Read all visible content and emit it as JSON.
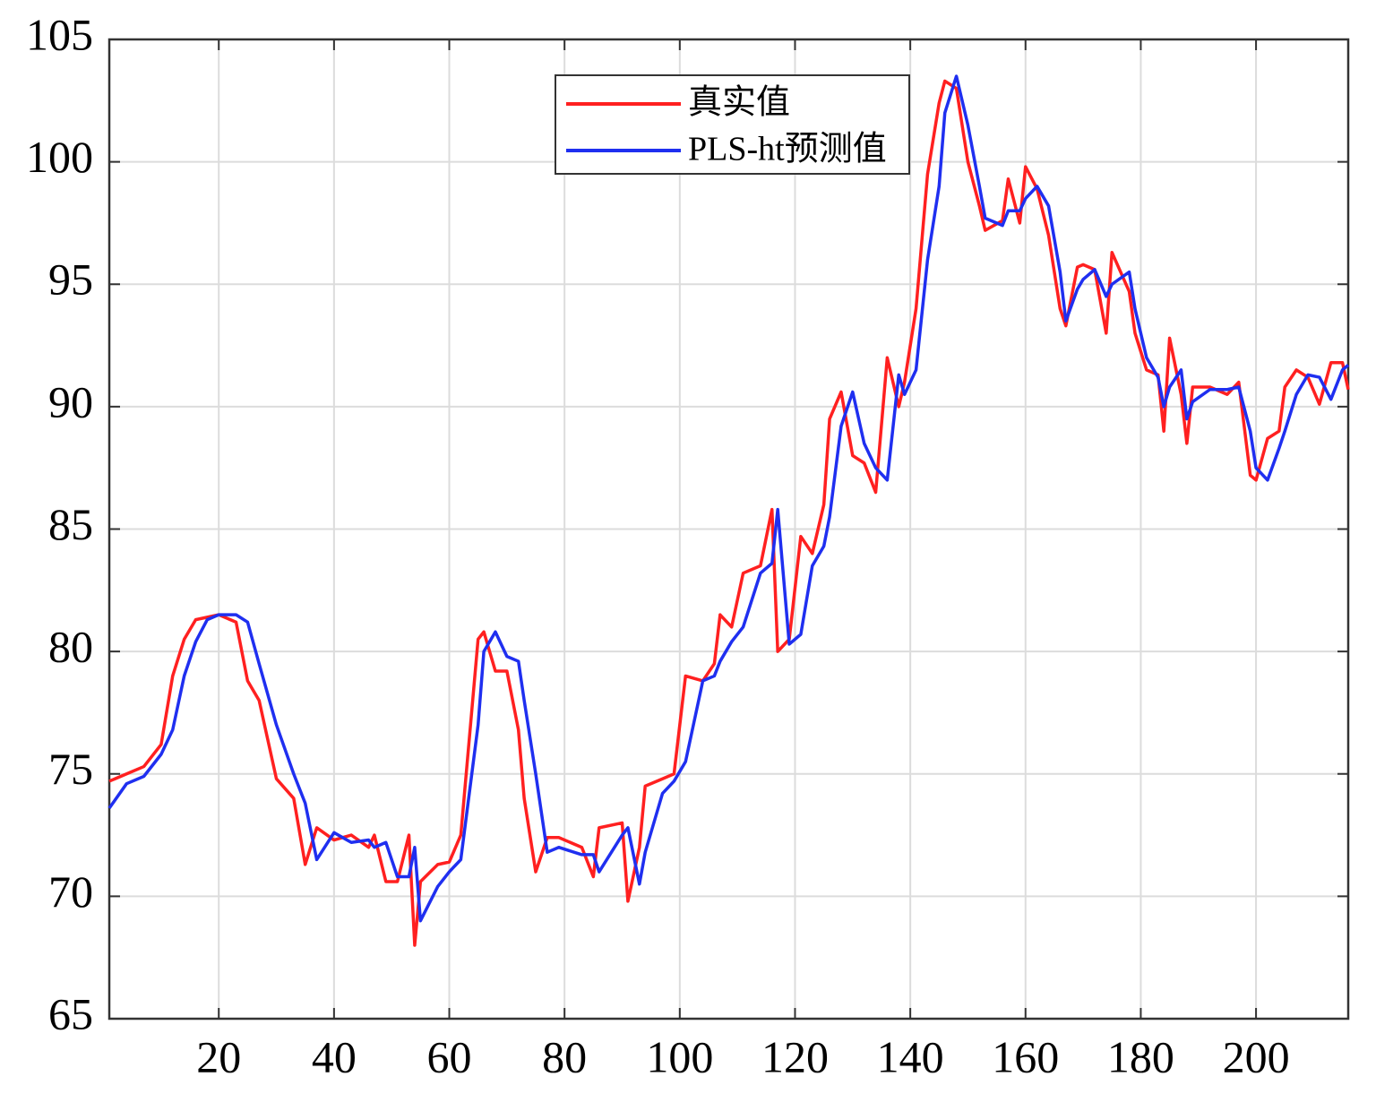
{
  "chart_data": {
    "type": "line",
    "x": [
      1,
      4,
      7,
      10,
      12,
      14,
      16,
      18,
      20,
      23,
      25,
      27,
      30,
      33,
      35,
      37,
      40,
      43,
      46,
      47,
      49,
      51,
      53,
      54,
      55,
      58,
      60,
      62,
      65,
      66,
      68,
      70,
      72,
      73,
      75,
      77,
      79,
      83,
      85,
      86,
      90,
      91,
      93,
      94,
      97,
      99,
      101,
      104,
      106,
      107,
      109,
      111,
      114,
      116,
      117,
      119,
      121,
      123,
      125,
      126,
      128,
      130,
      132,
      134,
      136,
      138,
      139,
      141,
      143,
      145,
      146,
      148,
      150,
      152,
      153,
      156,
      157,
      159,
      160,
      162,
      164,
      166,
      167,
      169,
      170,
      172,
      174,
      175,
      178,
      179,
      181,
      183,
      184,
      185,
      187,
      188,
      189,
      192,
      195,
      197,
      199,
      200,
      202,
      204,
      205,
      207,
      209,
      211,
      213,
      215,
      216
    ],
    "series": [
      {
        "name": "真实值",
        "color": "#ff2020",
        "values": [
          74.7,
          75.0,
          75.3,
          76.2,
          79.0,
          80.5,
          81.3,
          81.4,
          81.5,
          81.2,
          78.8,
          78.0,
          74.8,
          74.0,
          71.3,
          72.8,
          72.3,
          72.5,
          72.0,
          72.5,
          70.6,
          70.6,
          72.5,
          68.0,
          70.6,
          71.3,
          71.4,
          72.5,
          80.5,
          80.8,
          79.2,
          79.2,
          76.8,
          74.0,
          71.0,
          72.4,
          72.4,
          72.0,
          70.8,
          72.8,
          73.0,
          69.8,
          72.0,
          74.5,
          74.8,
          75.0,
          79.0,
          78.8,
          79.5,
          81.5,
          81.0,
          83.2,
          83.5,
          85.8,
          80.0,
          80.5,
          84.7,
          84.0,
          86.0,
          89.5,
          90.6,
          88.0,
          87.7,
          86.5,
          92.0,
          90.0,
          91.0,
          94.0,
          99.5,
          102.4,
          103.3,
          103.0,
          100.0,
          98.2,
          97.2,
          97.6,
          99.3,
          97.5,
          99.8,
          98.9,
          97.0,
          94.0,
          93.3,
          95.7,
          95.8,
          95.6,
          93.0,
          96.3,
          94.7,
          93.0,
          91.5,
          91.3,
          89.0,
          92.8,
          90.5,
          88.5,
          90.8,
          90.8,
          90.5,
          91.0,
          87.2,
          87.0,
          88.7,
          89.0,
          90.8,
          91.5,
          91.2,
          90.1,
          91.8,
          91.8,
          90.7
        ]
      },
      {
        "name": "PLS-ht预测值",
        "color": "#1f2ff0",
        "values": [
          73.6,
          74.6,
          74.9,
          75.8,
          76.8,
          79.0,
          80.4,
          81.3,
          81.5,
          81.5,
          81.2,
          79.5,
          77.0,
          75.0,
          73.8,
          71.5,
          72.6,
          72.2,
          72.3,
          72.0,
          72.2,
          70.8,
          70.8,
          72.0,
          69.0,
          70.4,
          71.0,
          71.5,
          77.0,
          80.0,
          80.8,
          79.8,
          79.6,
          78.0,
          75.0,
          71.8,
          72.0,
          71.7,
          71.7,
          71.0,
          72.5,
          72.8,
          70.5,
          71.8,
          74.2,
          74.7,
          75.5,
          78.8,
          79.0,
          79.6,
          80.4,
          81.0,
          83.2,
          83.6,
          85.8,
          80.3,
          80.7,
          83.5,
          84.3,
          85.5,
          89.2,
          90.6,
          88.5,
          87.5,
          87.0,
          91.3,
          90.5,
          91.5,
          96.0,
          99.0,
          102.0,
          103.5,
          101.5,
          99.0,
          97.7,
          97.4,
          98.0,
          98.0,
          98.5,
          99.0,
          98.2,
          95.5,
          93.5,
          94.8,
          95.2,
          95.6,
          94.5,
          95.0,
          95.5,
          94.0,
          92.0,
          91.2,
          90.0,
          90.8,
          91.5,
          89.5,
          90.2,
          90.7,
          90.7,
          90.8,
          89.0,
          87.5,
          87.0,
          88.3,
          89.0,
          90.5,
          91.3,
          91.2,
          90.3,
          91.5,
          91.7
        ]
      }
    ],
    "xlim": [
      1,
      216
    ],
    "ylim": [
      65,
      105
    ],
    "xticks": [
      20,
      40,
      60,
      80,
      100,
      120,
      140,
      160,
      180,
      200
    ],
    "yticks": [
      65,
      70,
      75,
      80,
      85,
      90,
      95,
      100,
      105
    ],
    "grid": true,
    "legend": "top-center"
  }
}
